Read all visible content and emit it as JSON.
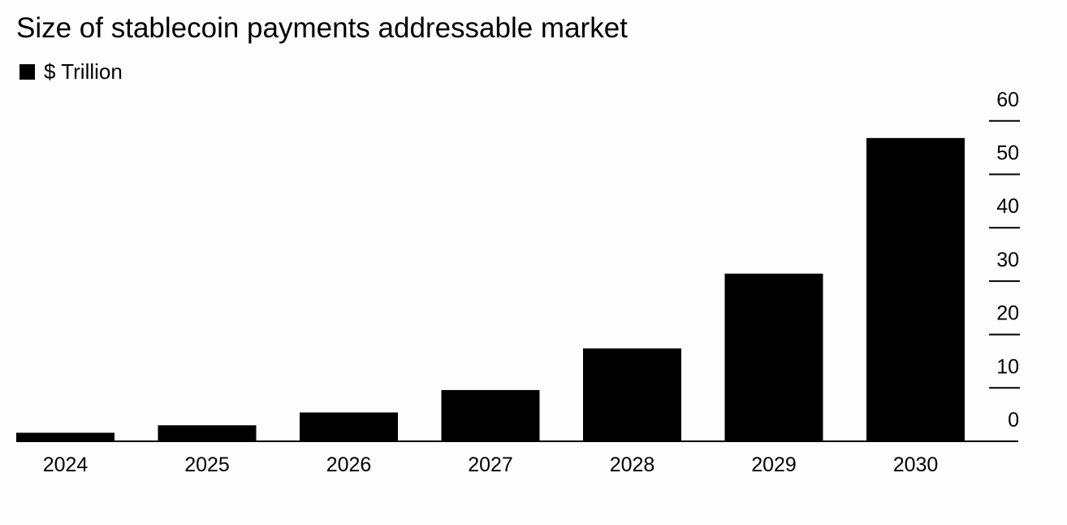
{
  "chart_data": {
    "type": "bar",
    "title": "Size of stablecoin payments addressable market",
    "legend": {
      "label": "$ Trillion",
      "color": "#000000"
    },
    "categories": [
      "2024",
      "2025",
      "2026",
      "2027",
      "2028",
      "2029",
      "2030"
    ],
    "series": [
      {
        "name": "$ Trillion",
        "values": [
          1.6,
          3.0,
          5.4,
          9.6,
          17.4,
          31.4,
          56.8
        ]
      }
    ],
    "ylim": [
      0,
      60
    ],
    "yticks": [
      0,
      10,
      20,
      30,
      40,
      50,
      60
    ],
    "y_axis_position": "right",
    "grid": false,
    "bar_color": "#000000"
  }
}
